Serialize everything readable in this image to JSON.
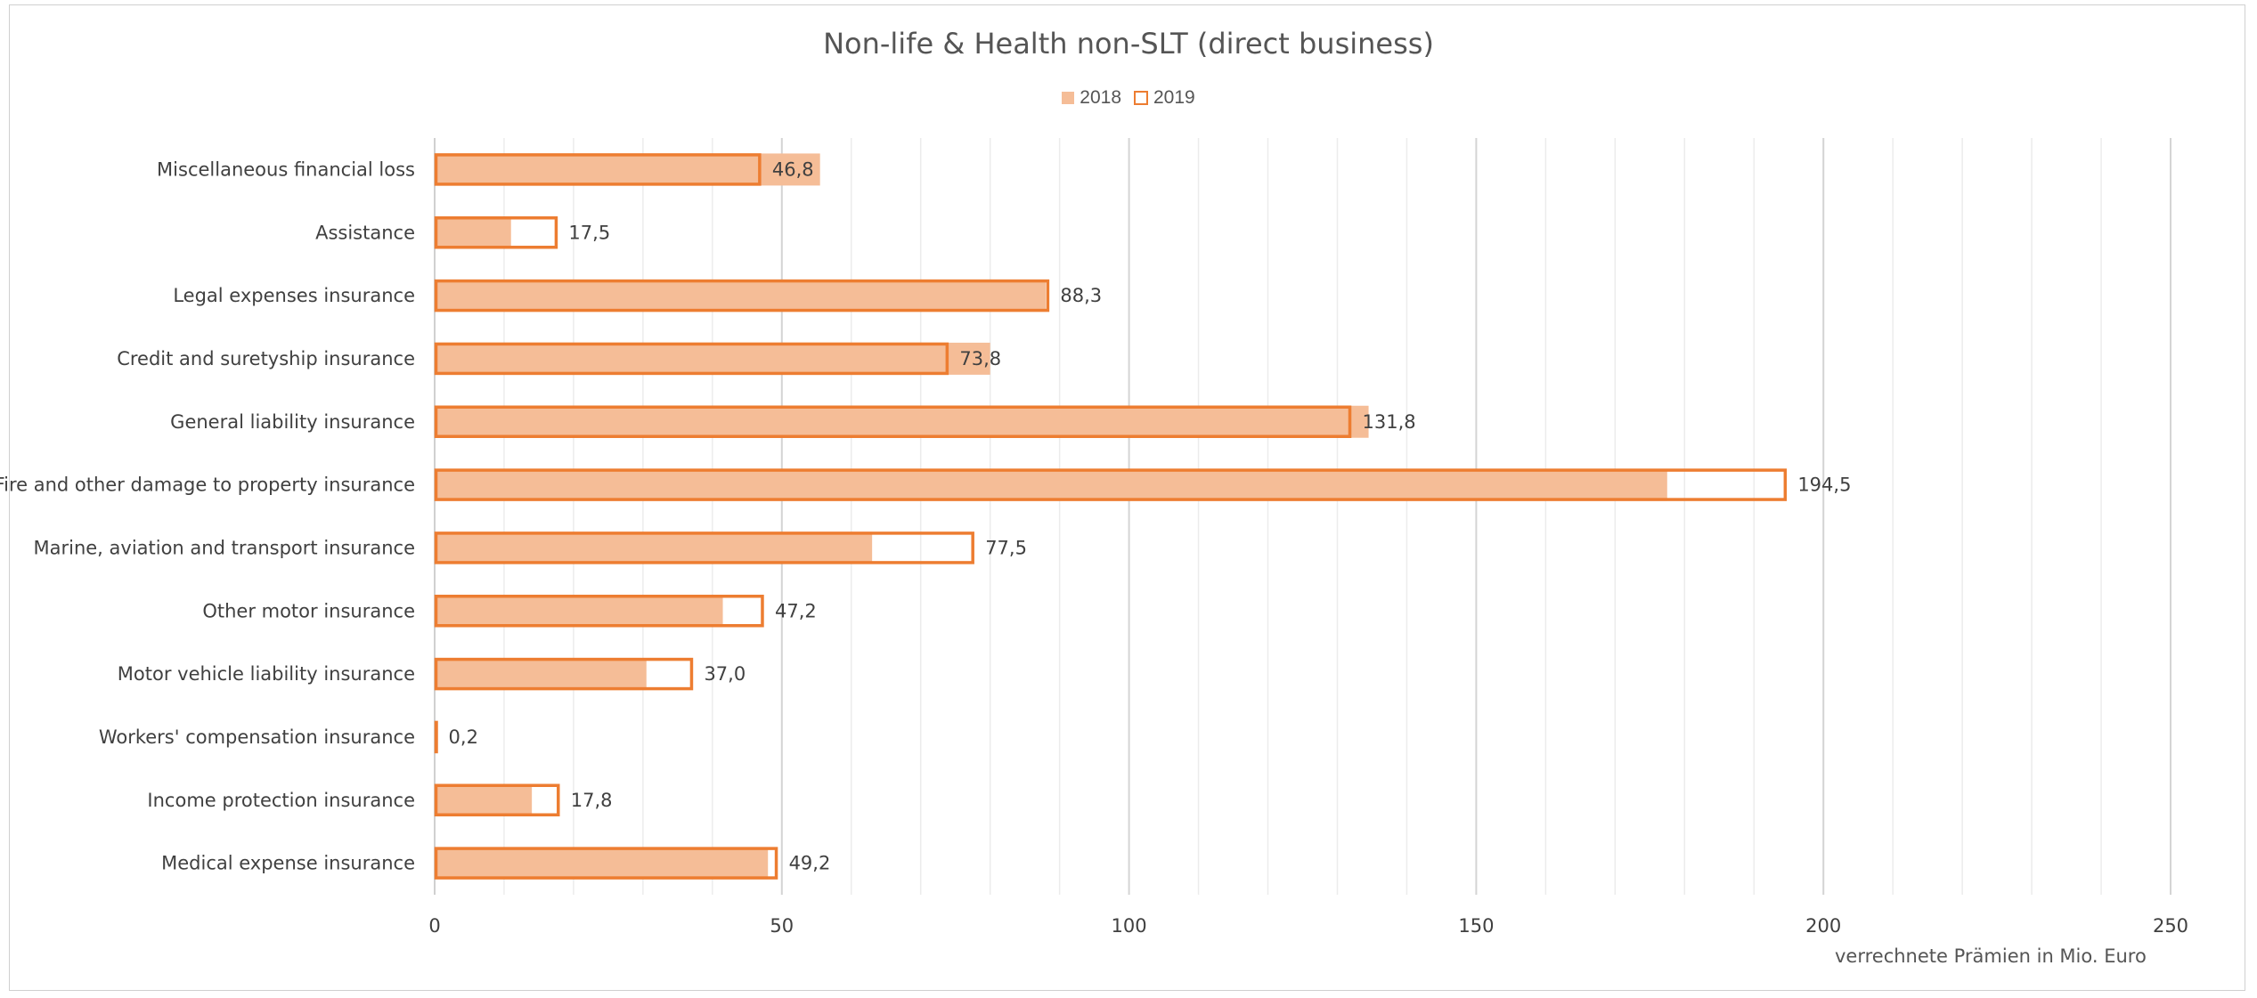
{
  "chart_data": {
    "type": "bar",
    "orientation": "horizontal",
    "title": "Non-life & Health non-SLT (direct business)",
    "xlabel": "verrechnete Prämien in Mio. Euro",
    "ylabel": "",
    "xlim": [
      0,
      250
    ],
    "x_ticks": [
      "0",
      "50",
      "100",
      "150",
      "200",
      "250"
    ],
    "x_tick_values": [
      0,
      50,
      100,
      150,
      200,
      250
    ],
    "minor_grid_step": 10,
    "grid": true,
    "legend_position": "top",
    "categories": [
      "Miscellaneous financial loss",
      "Assistance",
      "Legal expenses insurance",
      "Credit and suretyship insurance",
      "General liability insurance",
      "Fire and other damage to property insurance",
      "Marine, aviation and transport insurance",
      "Other motor insurance",
      "Motor vehicle liability insurance",
      "Workers' compensation insurance",
      "Income protection insurance",
      "Medical expense insurance"
    ],
    "series": [
      {
        "name": "2018",
        "color": "#f5bd97",
        "values": [
          55.5,
          11,
          88,
          80,
          134.5,
          177.5,
          63,
          41.5,
          30.5,
          0.1,
          14,
          48
        ]
      },
      {
        "name": "2019",
        "color": "#ed7d31",
        "style": "outline",
        "values": [
          46.8,
          17.5,
          88.3,
          73.8,
          131.8,
          194.5,
          77.5,
          47.2,
          37.0,
          0.2,
          17.8,
          49.2
        ],
        "data_labels": [
          "46,8",
          "17,5",
          "88,3",
          "73,8",
          "131,8",
          "194,5",
          "77,5",
          "47,2",
          "37,0",
          "0,2",
          "17,8",
          "49,2"
        ]
      }
    ]
  }
}
